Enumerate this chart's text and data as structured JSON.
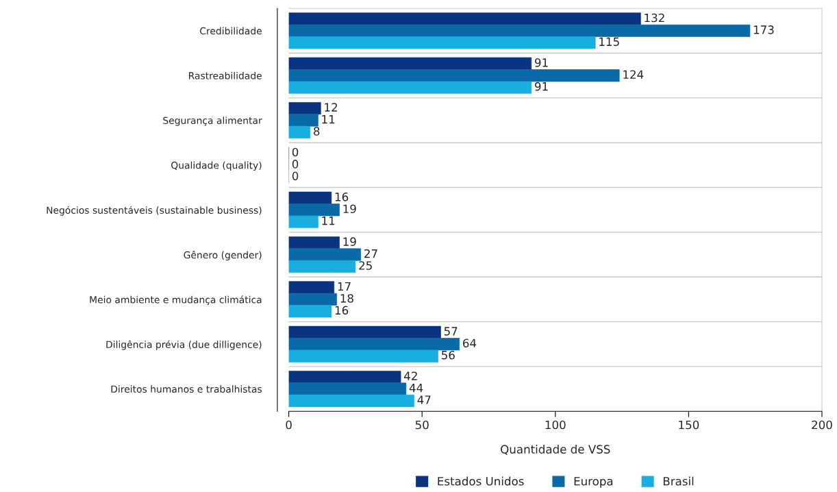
{
  "chart_data": {
    "type": "bar",
    "orientation": "horizontal",
    "xlabel": "Quantidade de VSS",
    "categories": [
      "Credibilidade",
      "Rastreabilidade",
      "Segurança alimentar",
      "Qualidade (quality)",
      "Negócios sustentáveis (sustainable business)",
      "Gênero (gender)",
      "Meio ambiente e mudança climática",
      "Diligência prévia (due dilligence)",
      "Direitos humanos e trabalhistas"
    ],
    "series": [
      {
        "name": "Estados Unidos",
        "color": "#0b3480",
        "values": [
          132,
          91,
          12,
          0,
          16,
          19,
          17,
          57,
          42
        ]
      },
      {
        "name": "Europa",
        "color": "#0a6aa8",
        "values": [
          173,
          124,
          11,
          0,
          19,
          27,
          18,
          64,
          44
        ]
      },
      {
        "name": "Brasil",
        "color": "#18aee0",
        "values": [
          115,
          91,
          8,
          0,
          11,
          25,
          16,
          56,
          47
        ]
      }
    ],
    "xlim": [
      0,
      200
    ],
    "xticks": [
      0,
      50,
      100,
      150,
      200
    ],
    "grid": "y",
    "legend": "bottom",
    "data_labels": true
  }
}
